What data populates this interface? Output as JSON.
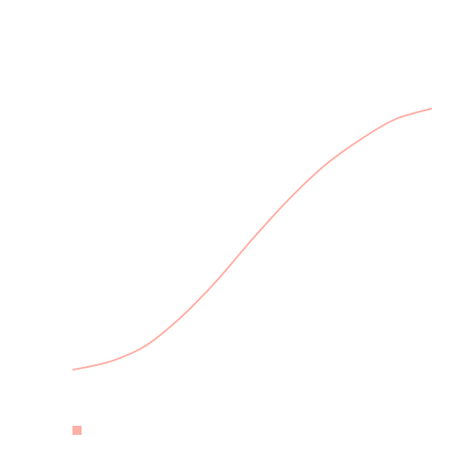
{
  "chart_data": {
    "type": "line",
    "title": "",
    "xlabel": "",
    "ylabel": "",
    "grid": false,
    "legend_placement": "bottom-left",
    "x": [
      0,
      0.1,
      0.2,
      0.3,
      0.4,
      0.5,
      0.6,
      0.7,
      0.8,
      0.9,
      1.0
    ],
    "series": [
      {
        "values": [
          0,
          0.03,
          0.09,
          0.2,
          0.34,
          0.5,
          0.65,
          0.78,
          0.88,
          0.96,
          1.0
        ],
        "color": "#ffb0a7"
      }
    ],
    "xlim": [
      0,
      1
    ],
    "ylim": [
      0,
      1
    ]
  }
}
